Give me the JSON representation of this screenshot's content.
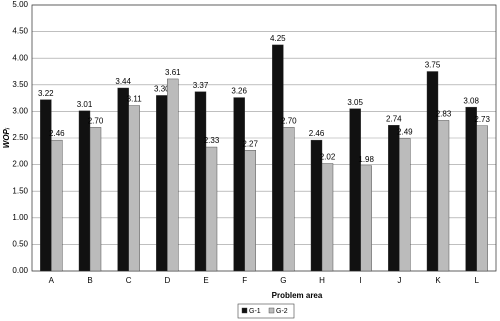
{
  "chart_data": {
    "type": "bar",
    "categories": [
      "A",
      "B",
      "C",
      "D",
      "E",
      "F",
      "G",
      "H",
      "I",
      "J",
      "K",
      "L"
    ],
    "series": [
      {
        "name": "G-1",
        "color": "#111111",
        "values": [
          3.22,
          3.01,
          3.44,
          3.3,
          3.37,
          3.26,
          4.25,
          2.46,
          3.05,
          2.74,
          3.75,
          3.08
        ],
        "value_labels": [
          "3.22",
          "3.01",
          "3.44",
          "3.30",
          "3.37",
          "3.26",
          "4.25",
          "2.46",
          "3.05",
          "2.74",
          "3.75",
          "3.08"
        ]
      },
      {
        "name": "G-2",
        "color": "#bbbbbb",
        "values": [
          2.46,
          2.7,
          3.11,
          3.61,
          2.33,
          2.27,
          2.7,
          2.02,
          1.98,
          2.49,
          2.83,
          2.73
        ],
        "value_labels": [
          "2.46",
          "2.70",
          "3.11",
          "3.61",
          "2.33",
          "2.27",
          "2.70",
          "2.02",
          "1.98",
          "2.49",
          "2.83",
          "2.73"
        ]
      }
    ],
    "x_label": "Problem area",
    "y_label": "WOPᵢ",
    "ylim": [
      0,
      5
    ],
    "yticks": [
      {
        "value": 0,
        "label": "0.00"
      },
      {
        "value": 0.5,
        "label": "0.50"
      },
      {
        "value": 1,
        "label": "1.00"
      },
      {
        "value": 1.5,
        "label": "1.50"
      },
      {
        "value": 2,
        "label": "2.00"
      },
      {
        "value": 2.5,
        "label": "2.50"
      },
      {
        "value": 3,
        "label": "3.00"
      },
      {
        "value": 3.5,
        "label": "3.50"
      },
      {
        "value": 4,
        "label": "4.00"
      },
      {
        "value": 4.5,
        "label": "4.50"
      },
      {
        "value": 5,
        "label": "5.00"
      }
    ],
    "grid": true,
    "legend": "bottom"
  }
}
